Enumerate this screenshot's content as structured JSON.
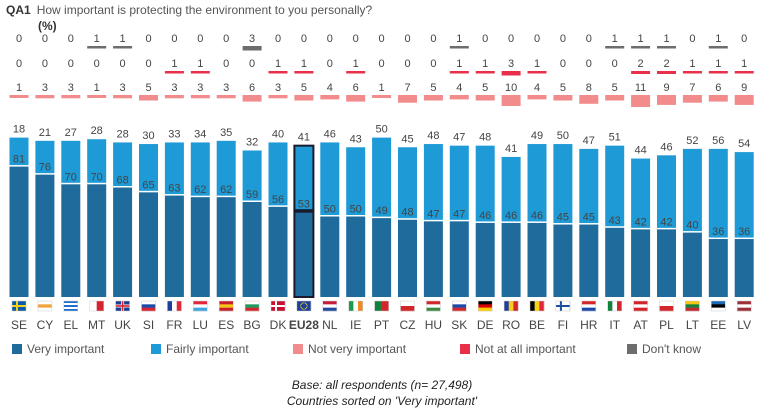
{
  "header": {
    "code": "QA1",
    "question": "How important is protecting the environment to you personally?",
    "unit": "(%)"
  },
  "footnote": {
    "line1": "Base: all respondents (n= 27,498)",
    "line2": "Countries sorted on 'Very important'"
  },
  "chart_data": {
    "type": "bar",
    "stacked": true,
    "categories": [
      "SE",
      "CY",
      "EL",
      "MT",
      "UK",
      "SI",
      "FR",
      "LU",
      "ES",
      "BG",
      "DK",
      "EU28",
      "NL",
      "IE",
      "PT",
      "CZ",
      "HU",
      "SK",
      "DE",
      "RO",
      "BE",
      "FI",
      "HR",
      "IT",
      "AT",
      "PL",
      "LT",
      "EE",
      "LV"
    ],
    "highlight_category": "EU28",
    "series": [
      {
        "name": "Very important",
        "color": "#1f6b9c",
        "values": [
          81,
          76,
          70,
          70,
          68,
          65,
          63,
          62,
          62,
          59,
          56,
          53,
          50,
          50,
          49,
          48,
          47,
          47,
          46,
          46,
          46,
          45,
          45,
          43,
          42,
          42,
          40,
          36,
          36
        ]
      },
      {
        "name": "Fairly important",
        "color": "#1e9ad6",
        "values": [
          18,
          21,
          27,
          28,
          28,
          30,
          33,
          34,
          35,
          32,
          40,
          41,
          46,
          43,
          50,
          45,
          48,
          47,
          48,
          41,
          49,
          50,
          47,
          51,
          44,
          46,
          52,
          56,
          54
        ]
      },
      {
        "name": "Not very important",
        "color": "#f28b8b",
        "values": [
          1,
          3,
          3,
          1,
          3,
          5,
          3,
          3,
          3,
          6,
          3,
          5,
          4,
          6,
          1,
          7,
          5,
          4,
          5,
          10,
          4,
          5,
          8,
          5,
          11,
          9,
          7,
          6,
          9
        ]
      },
      {
        "name": "Not at all important",
        "color": "#e8304a",
        "values": [
          0,
          0,
          0,
          0,
          0,
          0,
          1,
          1,
          0,
          0,
          1,
          1,
          0,
          1,
          0,
          0,
          0,
          1,
          1,
          3,
          1,
          0,
          0,
          0,
          2,
          2,
          1,
          1,
          1
        ]
      },
      {
        "name": "Don't know",
        "color": "#6d6d6d",
        "values": [
          0,
          0,
          0,
          1,
          1,
          0,
          0,
          0,
          0,
          3,
          0,
          0,
          0,
          0,
          0,
          0,
          0,
          1,
          0,
          0,
          0,
          0,
          0,
          1,
          1,
          1,
          0,
          1,
          0
        ]
      }
    ],
    "flags": {
      "SE": [
        "v",
        "#0b5aa8",
        "#f3d21a"
      ],
      "CY": [
        "h",
        "#ffffff",
        "#f0a33a",
        "#ffffff"
      ],
      "EL": [
        "stripes",
        "#1e6fcc",
        "#ffffff"
      ],
      "MT": [
        "v",
        "#ffffff",
        "#d5232f"
      ],
      "UK": [
        "uk",
        "#1a3f8f",
        "#d5232f"
      ],
      "SI": [
        "h",
        "#ffffff",
        "#1a49a8",
        "#d5232f"
      ],
      "FR": [
        "v",
        "#1f3e9a",
        "#ffffff",
        "#e1283a"
      ],
      "LU": [
        "h",
        "#e1283a",
        "#ffffff",
        "#3da5e0"
      ],
      "ES": [
        "h",
        "#c8202a",
        "#f5c518",
        "#c8202a"
      ],
      "BG": [
        "h",
        "#ffffff",
        "#1c9a5c",
        "#d3262c"
      ],
      "DK": [
        "v",
        "#c8102e",
        "#c8102e"
      ],
      "EU28": [
        "v",
        "#1d3f9c",
        "#1d3f9c"
      ],
      "NL": [
        "h",
        "#c41e3a",
        "#ffffff",
        "#1f4aa0"
      ],
      "IE": [
        "v",
        "#1d9a4e",
        "#ffffff",
        "#f08a24"
      ],
      "PT": [
        "v",
        "#15803d",
        "#d3262c"
      ],
      "CZ": [
        "h",
        "#ffffff",
        "#d3262c"
      ],
      "HU": [
        "h",
        "#d3262c",
        "#ffffff",
        "#3a8a3f"
      ],
      "SK": [
        "h",
        "#ffffff",
        "#1a49a8",
        "#d3262c"
      ],
      "DE": [
        "h",
        "#000000",
        "#dd0000",
        "#ffce00"
      ],
      "RO": [
        "v",
        "#1f3e9a",
        "#f5cd1a",
        "#d3262c"
      ],
      "BE": [
        "v",
        "#000000",
        "#f5d41a",
        "#e1283a"
      ],
      "FI": [
        "v",
        "#ffffff",
        "#1a4fa0"
      ],
      "HR": [
        "h",
        "#d3262c",
        "#ffffff",
        "#1a49a8"
      ],
      "IT": [
        "v",
        "#15803d",
        "#ffffff",
        "#d3262c"
      ],
      "AT": [
        "h",
        "#d3262c",
        "#ffffff",
        "#d3262c"
      ],
      "PL": [
        "h",
        "#ffffff",
        "#d3262c"
      ],
      "LT": [
        "h",
        "#f5c518",
        "#15803d",
        "#c1272d"
      ],
      "EE": [
        "h",
        "#1f6ab5",
        "#000000",
        "#ffffff"
      ],
      "LV": [
        "h",
        "#9e3039",
        "#ffffff",
        "#9e3039"
      ]
    }
  }
}
